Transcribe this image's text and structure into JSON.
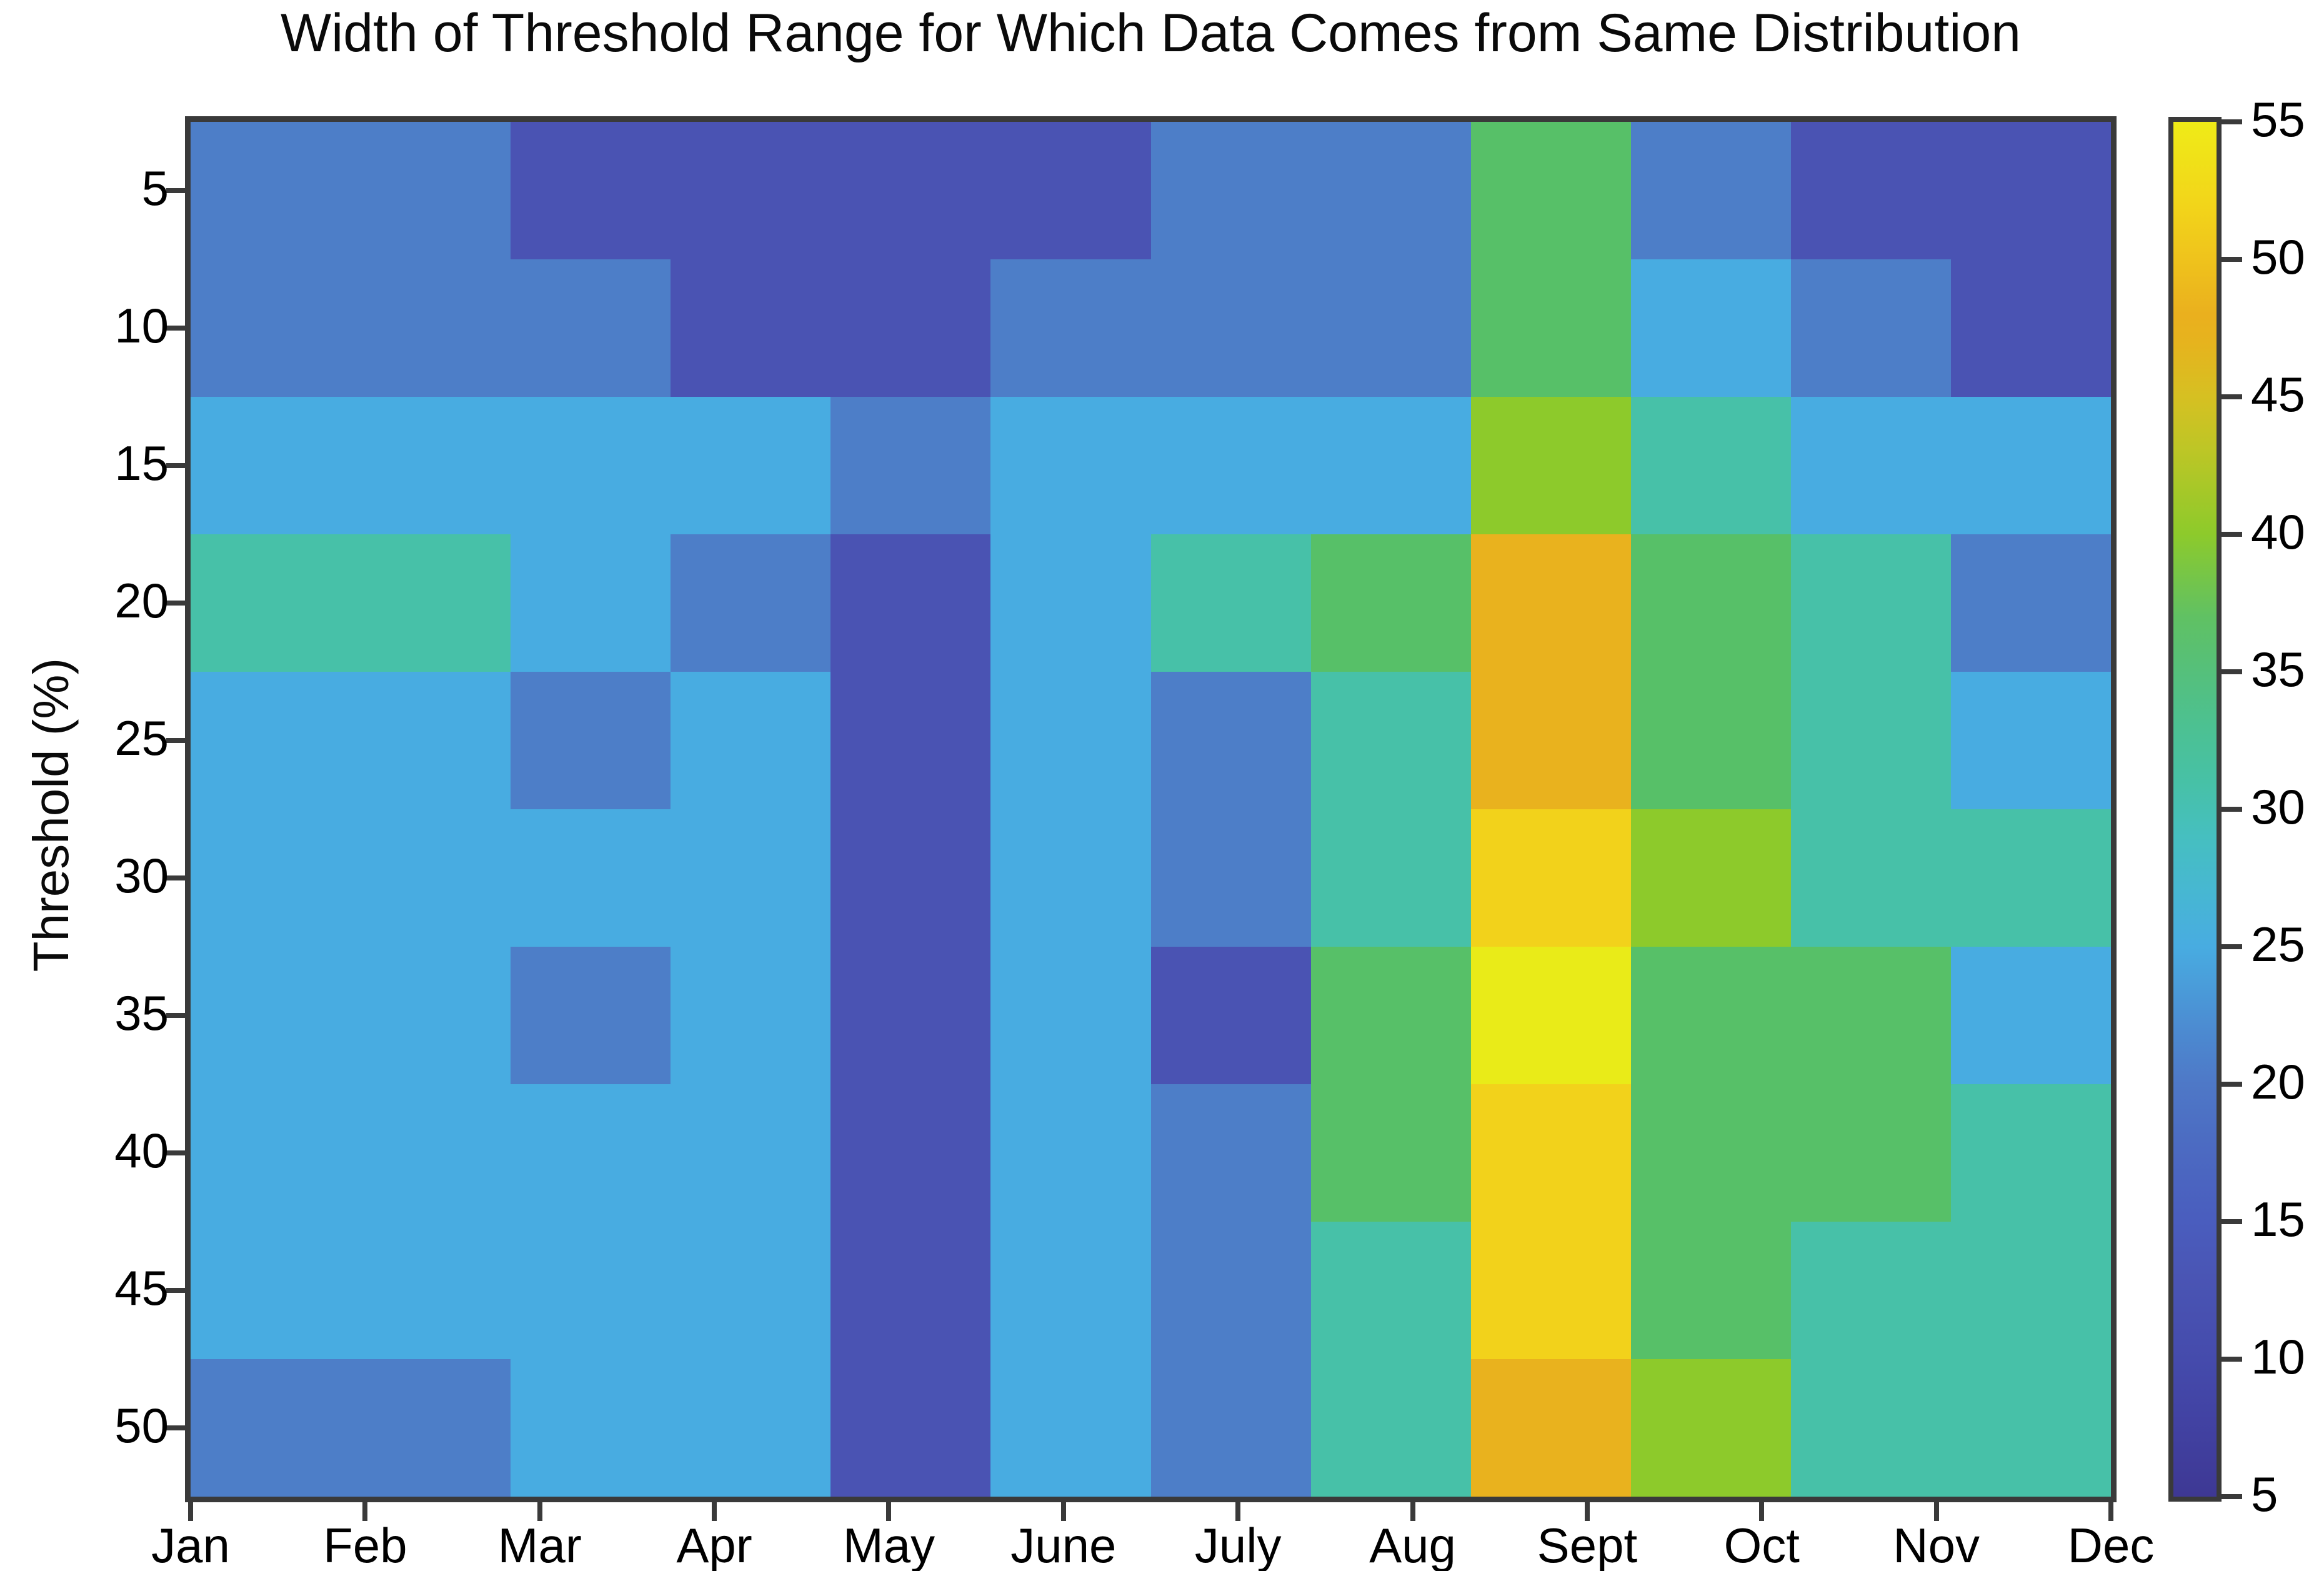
{
  "page": {
    "background": "#ffffff",
    "axis_color": "#3a3a3a",
    "text_color": "#0a0a0a"
  },
  "chart_data": {
    "type": "heatmap",
    "title": "Width of Threshold Range for Which Data Comes from Same Distribution",
    "xlabel": "",
    "ylabel": "Threshold (%)",
    "x_categories": [
      "Jan",
      "Feb",
      "Mar",
      "Apr",
      "May",
      "June",
      "July",
      "Aug",
      "Sept",
      "Oct",
      "Nov",
      "Dec"
    ],
    "y_categories": [
      "5",
      "10",
      "15",
      "20",
      "25",
      "30",
      "35",
      "40",
      "45",
      "50"
    ],
    "grid": false,
    "legend_position": "right-colorbar",
    "values": [
      [
        21,
        21,
        13,
        13,
        13,
        13,
        21,
        21,
        36,
        21,
        13,
        13
      ],
      [
        21,
        21,
        21,
        13,
        13,
        21,
        21,
        21,
        36,
        25,
        21,
        13
      ],
      [
        25,
        25,
        25,
        25,
        21,
        25,
        25,
        25,
        40,
        31,
        25,
        25
      ],
      [
        31,
        31,
        25,
        21,
        13,
        25,
        31,
        36,
        47,
        36,
        31,
        21
      ],
      [
        25,
        25,
        21,
        25,
        13,
        25,
        21,
        31,
        47,
        36,
        31,
        25
      ],
      [
        25,
        25,
        25,
        25,
        13,
        25,
        21,
        31,
        51,
        40,
        31,
        31
      ],
      [
        25,
        25,
        21,
        25,
        13,
        25,
        13,
        36,
        54,
        36,
        36,
        25
      ],
      [
        25,
        25,
        25,
        25,
        13,
        25,
        21,
        36,
        51,
        36,
        36,
        31
      ],
      [
        25,
        25,
        25,
        25,
        13,
        25,
        21,
        31,
        51,
        36,
        31,
        31
      ],
      [
        21,
        21,
        25,
        25,
        13,
        25,
        21,
        31,
        47,
        40,
        31,
        31
      ]
    ],
    "value_colors": {
      "13": "#4a53b3",
      "21": "#4d7ec8",
      "25": "#48ace1",
      "31": "#47c1a8",
      "36": "#57c068",
      "40": "#8dca2b",
      "47": "#e9b21e",
      "51": "#f2d21b",
      "54": "#e9eb18"
    },
    "colorbar": {
      "min": 5,
      "max": 55,
      "tick_labels": [
        "5",
        "10",
        "15",
        "20",
        "25",
        "30",
        "35",
        "40",
        "45",
        "50",
        "55"
      ],
      "gradient": [
        {
          "v": 5,
          "c": "#3e3894"
        },
        {
          "v": 8,
          "c": "#4243a4"
        },
        {
          "v": 10,
          "c": "#454bac"
        },
        {
          "v": 13,
          "c": "#4a55b4"
        },
        {
          "v": 15,
          "c": "#4a5dbe"
        },
        {
          "v": 18,
          "c": "#4c6cc2"
        },
        {
          "v": 20,
          "c": "#4e78c7"
        },
        {
          "v": 22,
          "c": "#4c8bd1"
        },
        {
          "v": 25,
          "c": "#48ace1"
        },
        {
          "v": 27,
          "c": "#47b7d2"
        },
        {
          "v": 29,
          "c": "#46bfc0"
        },
        {
          "v": 31,
          "c": "#47c1a6"
        },
        {
          "v": 33,
          "c": "#4cc192"
        },
        {
          "v": 35,
          "c": "#55c07b"
        },
        {
          "v": 37,
          "c": "#60c163"
        },
        {
          "v": 40,
          "c": "#8dca2b"
        },
        {
          "v": 43,
          "c": "#bcc626"
        },
        {
          "v": 45,
          "c": "#d6c022"
        },
        {
          "v": 47,
          "c": "#e6b31e"
        },
        {
          "v": 48,
          "c": "#eab01e"
        },
        {
          "v": 50,
          "c": "#efc31c"
        },
        {
          "v": 52,
          "c": "#f2d51a"
        },
        {
          "v": 55,
          "c": "#efeb17"
        }
      ]
    }
  }
}
